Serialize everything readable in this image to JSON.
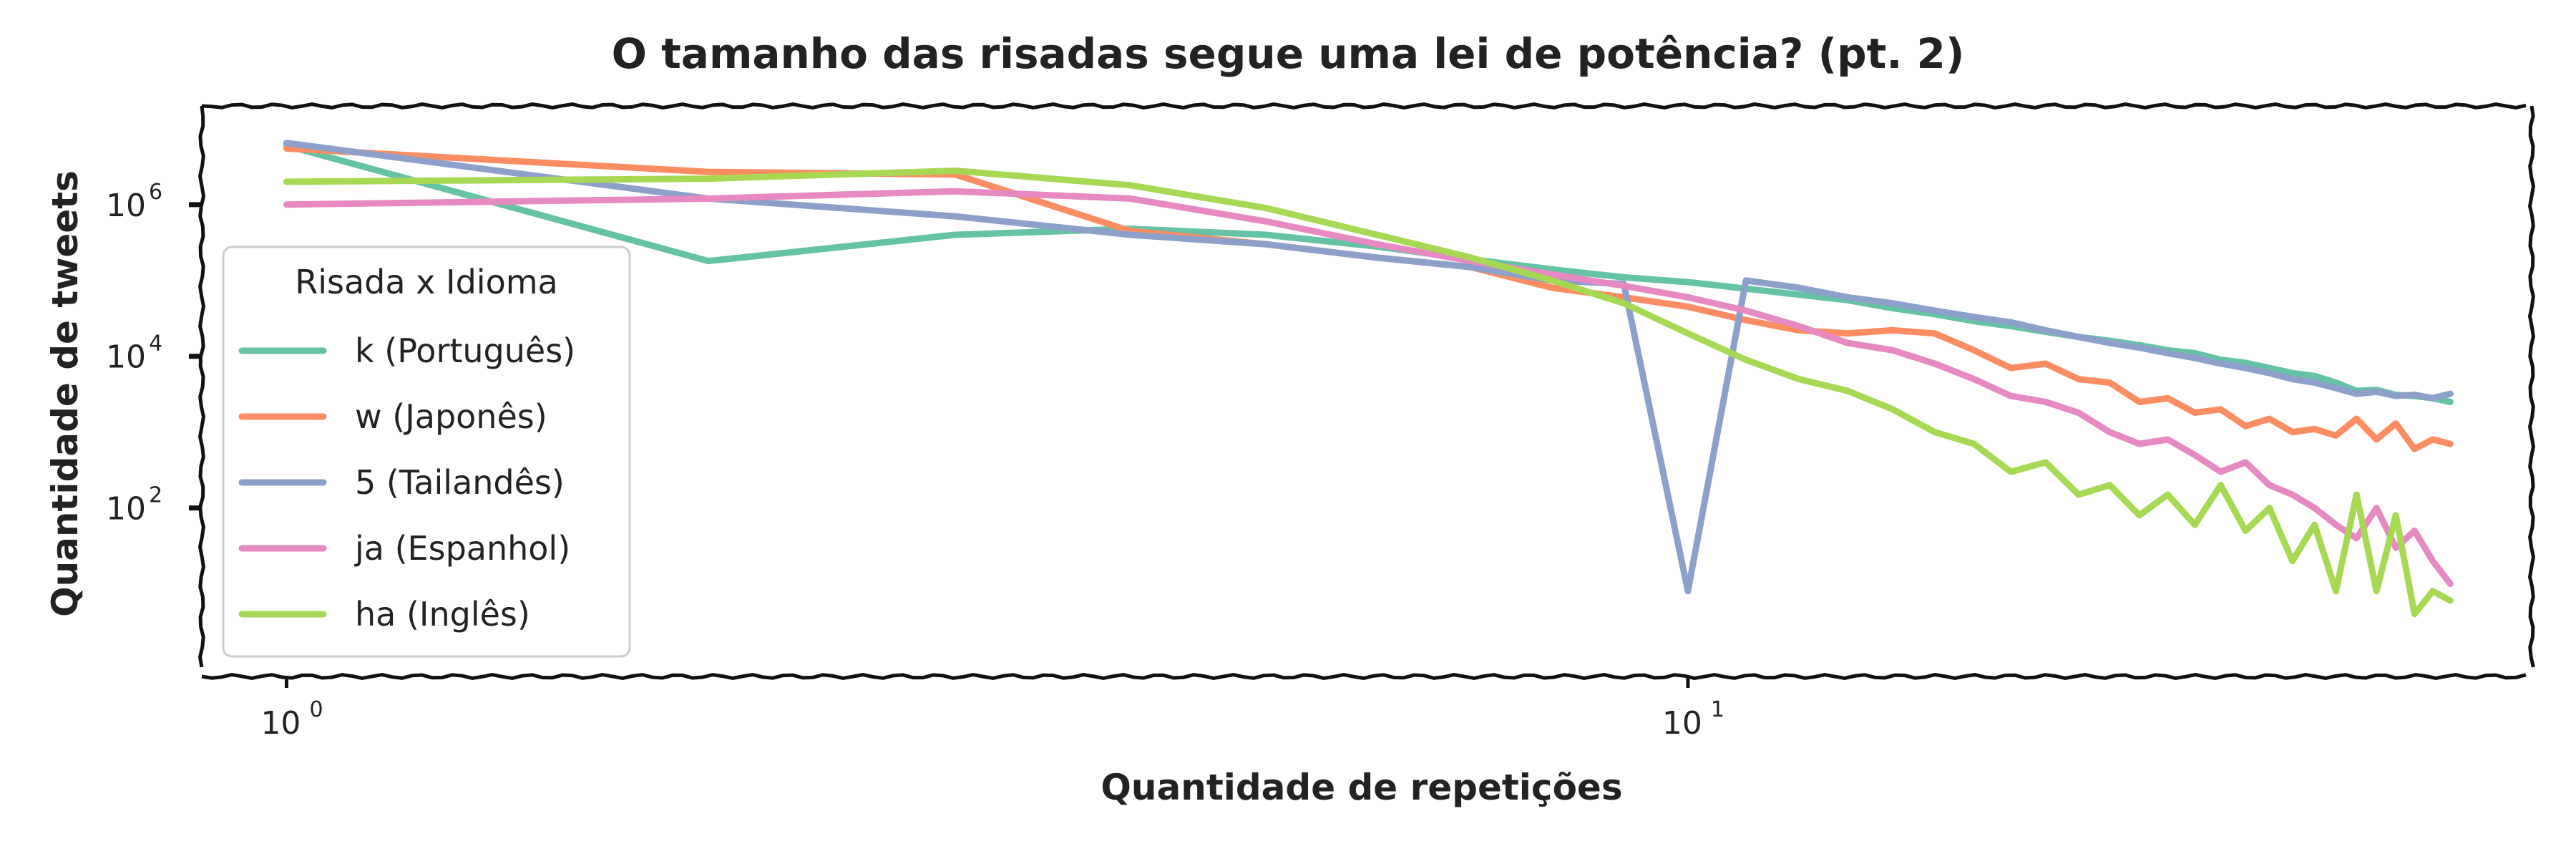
{
  "chart_data": {
    "type": "line",
    "title": "O tamanho das risadas segue uma lei de potência? (pt. 2)",
    "xlabel": "Quantidade de repetições",
    "ylabel": "Quantidade de tweets",
    "xscale": "log",
    "yscale": "log",
    "xlim": [
      0.87,
      40
    ],
    "ylim": [
      0.6,
      20000000
    ],
    "x_ticks": [
      {
        "value": 1,
        "base": "10",
        "exp": "0"
      },
      {
        "value": 10,
        "base": "10",
        "exp": "1"
      }
    ],
    "y_ticks": [
      {
        "value": 100,
        "base": "10",
        "exp": "2"
      },
      {
        "value": 10000,
        "base": "10",
        "exp": "4"
      },
      {
        "value": 1000000,
        "base": "10",
        "exp": "6"
      }
    ],
    "grid": false,
    "legend": {
      "title": "Risada x Idioma",
      "position": "lower-left"
    },
    "x": [
      1,
      2,
      3,
      4,
      5,
      6,
      7,
      8,
      9,
      10,
      11,
      12,
      13,
      14,
      15,
      16,
      17,
      18,
      19,
      20,
      21,
      22,
      23,
      24,
      25,
      26,
      27,
      28,
      29,
      30,
      31,
      32,
      33,
      34,
      35
    ],
    "series": [
      {
        "name": "k (Português)",
        "color": "#66c2a5",
        "values": [
          6000000,
          180000,
          400000,
          480000,
          400000,
          280000,
          190000,
          140000,
          110000,
          95000,
          78000,
          65000,
          55000,
          43000,
          36000,
          29000,
          25000,
          21000,
          18000,
          16000,
          14000,
          12000,
          11000,
          9000,
          8200,
          7000,
          6000,
          5500,
          4500,
          3500,
          3600,
          3100,
          3000,
          2800,
          2500
        ]
      },
      {
        "name": "w (Japonês)",
        "color": "#fc8d62",
        "values": [
          5500000,
          2700000,
          2500000,
          450000,
          300000,
          200000,
          150000,
          80000,
          60000,
          45000,
          30000,
          22000,
          20000,
          22000,
          20000,
          12000,
          7000,
          8000,
          5000,
          4500,
          2500,
          2800,
          1800,
          2000,
          1200,
          1500,
          1000,
          1100,
          900,
          1500,
          800,
          1300,
          600,
          800,
          700
        ]
      },
      {
        "name": "5 (Tailandês)",
        "color": "#8da0cb",
        "values": [
          6500000,
          1200000,
          700000,
          400000,
          300000,
          200000,
          150000,
          100000,
          90000,
          8,
          100000,
          80000,
          60000,
          50000,
          40000,
          33000,
          28000,
          22000,
          18000,
          15000,
          13000,
          11000,
          9500,
          8000,
          7000,
          6000,
          5000,
          4500,
          3800,
          3200,
          3400,
          3000,
          3100,
          2800,
          3200
        ]
      },
      {
        "name": "ja (Espanhol)",
        "color": "#e78ac3",
        "values": [
          1000000,
          1200000,
          1500000,
          1200000,
          600000,
          300000,
          180000,
          120000,
          85000,
          60000,
          40000,
          25000,
          15000,
          12000,
          8000,
          5000,
          3000,
          2500,
          1800,
          1000,
          700,
          800,
          500,
          300,
          400,
          200,
          150,
          100,
          60,
          40,
          100,
          30,
          50,
          20,
          10
        ]
      },
      {
        "name": "ha (Inglês)",
        "color": "#a6d854",
        "values": [
          2000000,
          2200000,
          2800000,
          1800000,
          900000,
          400000,
          200000,
          100000,
          50000,
          20000,
          9000,
          5000,
          3500,
          2000,
          1000,
          700,
          300,
          400,
          150,
          200,
          80,
          150,
          60,
          200,
          50,
          100,
          20,
          60,
          8,
          150,
          8,
          80,
          4,
          8,
          6
        ]
      }
    ]
  }
}
